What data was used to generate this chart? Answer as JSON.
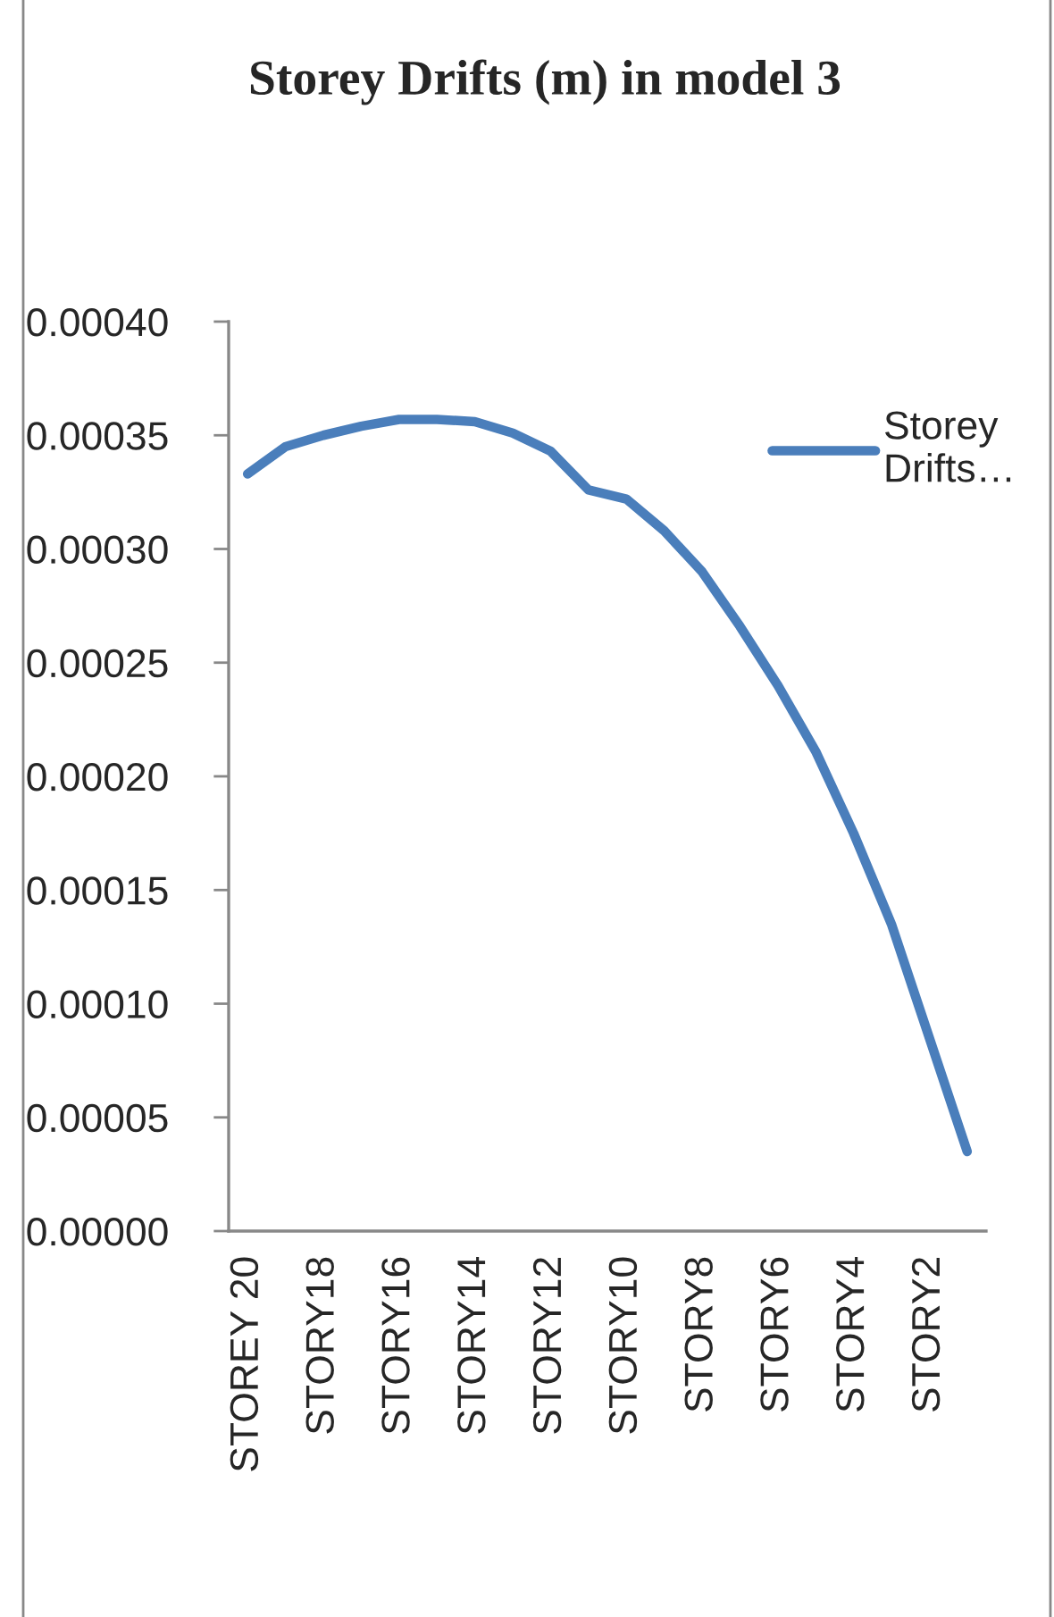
{
  "chart_data": {
    "type": "line",
    "title": "Storey Drifts (m) in model 3",
    "categories": [
      "STOREY 20",
      null,
      "STORY18",
      null,
      "STORY16",
      null,
      "STORY14",
      null,
      "STORY12",
      null,
      "STORY10",
      null,
      "STORY8",
      null,
      "STORY6",
      null,
      "STORY4",
      null,
      "STORY2",
      null
    ],
    "series": [
      {
        "name": "Storey Drifts…",
        "color": "#4a7ebb",
        "values": [
          0.000333,
          0.000345,
          0.00035,
          0.000354,
          0.000357,
          0.000357,
          0.000356,
          0.000351,
          0.000343,
          0.000326,
          0.000322,
          0.000308,
          0.00029,
          0.000266,
          0.00024,
          0.000211,
          0.000175,
          0.000135,
          8.5e-05,
          3.5e-05
        ]
      }
    ],
    "ylim": [
      0,
      0.0004
    ],
    "yticks": [
      {
        "value": 0,
        "label": "0.00000"
      },
      {
        "value": 5e-05,
        "label": "0.00005"
      },
      {
        "value": 0.0001,
        "label": "0.00010"
      },
      {
        "value": 0.00015,
        "label": "0.00015"
      },
      {
        "value": 0.0002,
        "label": "0.00020"
      },
      {
        "value": 0.00025,
        "label": "0.00025"
      },
      {
        "value": 0.0003,
        "label": "0.00030"
      },
      {
        "value": 0.00035,
        "label": "0.00035"
      },
      {
        "value": 0.0004,
        "label": "0.00040"
      }
    ],
    "legend": "top right"
  }
}
